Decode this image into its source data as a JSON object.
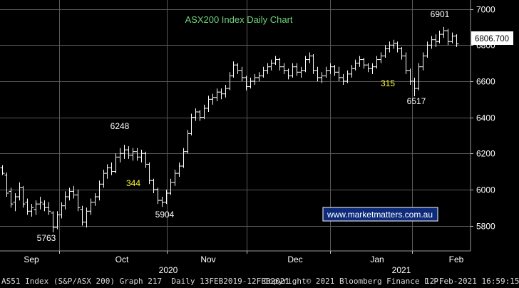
{
  "chart_data": {
    "type": "ohlc",
    "title": "ASX200 Index Daily Chart",
    "watermark": "www.marketmatters.com.au",
    "last_price": "6806.700",
    "x_tick_labels": [
      "Sep",
      "Oct",
      "Nov",
      "Dec",
      "Jan",
      "Feb"
    ],
    "year_labels": [
      "2020",
      "2021"
    ],
    "y_ticks": [
      5800,
      6000,
      6200,
      6400,
      6600,
      6800,
      7000
    ],
    "ylim": [
      5660,
      7050
    ],
    "annotations": [
      {
        "text": "5763",
        "kind": "low"
      },
      {
        "text": "6248",
        "kind": "high"
      },
      {
        "text": "344",
        "kind": "range"
      },
      {
        "text": "5904",
        "kind": "low"
      },
      {
        "text": "315",
        "kind": "range"
      },
      {
        "text": "6517",
        "kind": "low"
      },
      {
        "text": "6901",
        "kind": "high"
      }
    ],
    "series": [
      {
        "name": "AS51 Index",
        "ohlc": [
          [
            6120,
            6135,
            6080,
            6090
          ],
          [
            6080,
            6095,
            5960,
            5980
          ],
          [
            5990,
            6010,
            5900,
            5920
          ],
          [
            5930,
            5980,
            5880,
            5960
          ],
          [
            5960,
            6040,
            5940,
            6010
          ],
          [
            6010,
            6020,
            5900,
            5920
          ],
          [
            5930,
            5950,
            5860,
            5880
          ],
          [
            5880,
            5920,
            5850,
            5900
          ],
          [
            5890,
            5940,
            5860,
            5920
          ],
          [
            5920,
            5960,
            5890,
            5930
          ],
          [
            5920,
            5940,
            5880,
            5900
          ],
          [
            5900,
            5930,
            5860,
            5880
          ],
          [
            5870,
            5880,
            5763,
            5790
          ],
          [
            5790,
            5880,
            5780,
            5860
          ],
          [
            5860,
            5930,
            5840,
            5910
          ],
          [
            5910,
            5990,
            5890,
            5960
          ],
          [
            5960,
            6010,
            5940,
            5990
          ],
          [
            5990,
            6020,
            5950,
            5970
          ],
          [
            5970,
            6000,
            5880,
            5900
          ],
          [
            5890,
            5910,
            5800,
            5820
          ],
          [
            5820,
            5900,
            5790,
            5880
          ],
          [
            5880,
            5950,
            5860,
            5930
          ],
          [
            5930,
            5980,
            5910,
            5960
          ],
          [
            5960,
            6050,
            5940,
            6030
          ],
          [
            6030,
            6110,
            6010,
            6090
          ],
          [
            6090,
            6140,
            6060,
            6120
          ],
          [
            6120,
            6150,
            6080,
            6100
          ],
          [
            6100,
            6200,
            6090,
            6180
          ],
          [
            6180,
            6230,
            6150,
            6200
          ],
          [
            6200,
            6248,
            6170,
            6220
          ],
          [
            6220,
            6240,
            6170,
            6190
          ],
          [
            6190,
            6230,
            6160,
            6210
          ],
          [
            6210,
            6230,
            6160,
            6180
          ],
          [
            6180,
            6220,
            6150,
            6200
          ],
          [
            6200,
            6210,
            6120,
            6140
          ],
          [
            6140,
            6150,
            6030,
            6050
          ],
          [
            6050,
            6060,
            5980,
            6000
          ],
          [
            6000,
            6010,
            5920,
            5940
          ],
          [
            5940,
            5960,
            5904,
            5930
          ],
          [
            5930,
            6000,
            5920,
            5980
          ],
          [
            5980,
            6060,
            5970,
            6040
          ],
          [
            6040,
            6110,
            6020,
            6090
          ],
          [
            6090,
            6150,
            6070,
            6130
          ],
          [
            6130,
            6230,
            6120,
            6210
          ],
          [
            6210,
            6330,
            6200,
            6310
          ],
          [
            6310,
            6420,
            6300,
            6400
          ],
          [
            6400,
            6450,
            6380,
            6430
          ],
          [
            6430,
            6440,
            6380,
            6400
          ],
          [
            6400,
            6470,
            6390,
            6450
          ],
          [
            6450,
            6520,
            6430,
            6500
          ],
          [
            6500,
            6530,
            6470,
            6510
          ],
          [
            6510,
            6560,
            6490,
            6540
          ],
          [
            6540,
            6560,
            6500,
            6530
          ],
          [
            6530,
            6580,
            6510,
            6560
          ],
          [
            6560,
            6650,
            6550,
            6630
          ],
          [
            6630,
            6710,
            6620,
            6690
          ],
          [
            6690,
            6700,
            6640,
            6660
          ],
          [
            6660,
            6680,
            6600,
            6620
          ],
          [
            6620,
            6630,
            6550,
            6570
          ],
          [
            6570,
            6620,
            6560,
            6600
          ],
          [
            6600,
            6640,
            6580,
            6620
          ],
          [
            6620,
            6650,
            6600,
            6630
          ],
          [
            6630,
            6680,
            6620,
            6660
          ],
          [
            6660,
            6700,
            6640,
            6680
          ],
          [
            6680,
            6720,
            6660,
            6700
          ],
          [
            6700,
            6740,
            6690,
            6720
          ],
          [
            6720,
            6730,
            6660,
            6680
          ],
          [
            6680,
            6700,
            6640,
            6660
          ],
          [
            6660,
            6670,
            6610,
            6630
          ],
          [
            6630,
            6700,
            6620,
            6680
          ],
          [
            6680,
            6700,
            6630,
            6650
          ],
          [
            6650,
            6680,
            6620,
            6660
          ],
          [
            6660,
            6740,
            6650,
            6720
          ],
          [
            6720,
            6760,
            6700,
            6740
          ],
          [
            6740,
            6750,
            6640,
            6660
          ],
          [
            6660,
            6680,
            6600,
            6620
          ],
          [
            6620,
            6650,
            6590,
            6630
          ],
          [
            6630,
            6680,
            6620,
            6660
          ],
          [
            6660,
            6700,
            6640,
            6680
          ],
          [
            6680,
            6690,
            6630,
            6650
          ],
          [
            6650,
            6680,
            6600,
            6620
          ],
          [
            6620,
            6640,
            6580,
            6600
          ],
          [
            6600,
            6660,
            6590,
            6640
          ],
          [
            6640,
            6690,
            6620,
            6670
          ],
          [
            6670,
            6720,
            6660,
            6700
          ],
          [
            6700,
            6740,
            6680,
            6720
          ],
          [
            6720,
            6730,
            6670,
            6690
          ],
          [
            6690,
            6700,
            6650,
            6670
          ],
          [
            6670,
            6700,
            6640,
            6680
          ],
          [
            6680,
            6740,
            6670,
            6720
          ],
          [
            6720,
            6760,
            6700,
            6740
          ],
          [
            6740,
            6800,
            6730,
            6780
          ],
          [
            6780,
            6820,
            6760,
            6800
          ],
          [
            6800,
            6830,
            6780,
            6810
          ],
          [
            6810,
            6820,
            6760,
            6780
          ],
          [
            6780,
            6790,
            6720,
            6740
          ],
          [
            6740,
            6760,
            6640,
            6660
          ],
          [
            6660,
            6670,
            6580,
            6600
          ],
          [
            6600,
            6620,
            6517,
            6560
          ],
          [
            6560,
            6700,
            6550,
            6680
          ],
          [
            6680,
            6760,
            6660,
            6740
          ],
          [
            6740,
            6820,
            6730,
            6800
          ],
          [
            6800,
            6850,
            6780,
            6830
          ],
          [
            6830,
            6860,
            6790,
            6820
          ],
          [
            6820,
            6880,
            6810,
            6860
          ],
          [
            6860,
            6901,
            6840,
            6880
          ],
          [
            6880,
            6890,
            6800,
            6820
          ],
          [
            6820,
            6870,
            6810,
            6850
          ],
          [
            6850,
            6860,
            6790,
            6806.7
          ]
        ]
      }
    ]
  },
  "footer": {
    "left": "AS51 Index (S&P/ASX 200) Graph 217  Daily 13FEB2019-12FEB2021",
    "center": "Copyright© 2021 Bloomberg Finance L.P.",
    "right": "12-Feb-2021 16:59:15"
  }
}
